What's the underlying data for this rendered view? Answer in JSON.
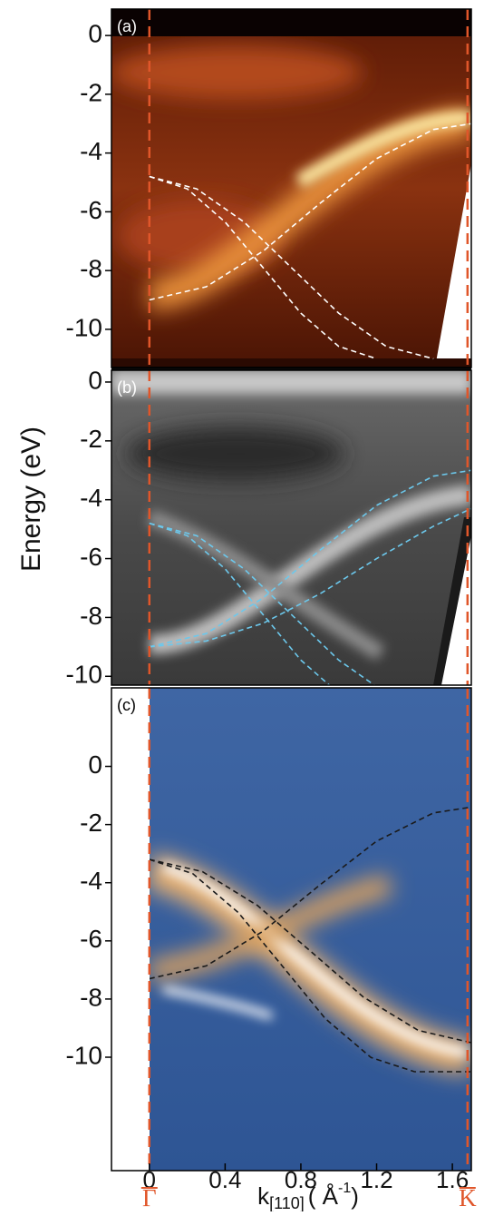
{
  "chart_data": [
    {
      "type": "line",
      "label": "(a)",
      "label_color": "#ffffff",
      "xlim": [
        -0.2,
        1.7
      ],
      "ylim": [
        -11.3,
        0.9
      ],
      "yticks": [
        -10,
        -8,
        -6,
        -4,
        -2,
        0
      ],
      "series": [
        {
          "color": "#ffffff",
          "x": [
            0,
            0.3,
            0.6,
            0.9,
            1.2,
            1.5,
            1.7
          ],
          "values": [
            -9,
            -8.55,
            -7.34,
            -5.72,
            -4.19,
            -3.2,
            -3.0
          ]
        },
        {
          "color": "#ffffff",
          "x": [
            0,
            0.2,
            0.4,
            0.6,
            0.8,
            1.0,
            1.2
          ],
          "values": [
            -4.8,
            -5.22,
            -6.35,
            -7.9,
            -9.45,
            -10.58,
            -11.0
          ]
        },
        {
          "color": "#ffffff",
          "x": [
            0,
            0.25,
            0.5,
            0.75,
            1.0,
            1.25,
            1.5
          ],
          "values": [
            -4.8,
            -5.22,
            -6.35,
            -7.9,
            -9.45,
            -10.58,
            -11.0
          ]
        }
      ]
    },
    {
      "type": "line",
      "label": "(b)",
      "label_color": "#ffffff",
      "ylabel": "Energy (eV)",
      "xlim": [
        -0.2,
        1.7
      ],
      "ylim": [
        -10.3,
        0.4
      ],
      "yticks": [
        -10,
        -8,
        -6,
        -4,
        -2,
        0
      ],
      "series": [
        {
          "color": "#6cc8ec",
          "x": [
            0,
            0.3,
            0.6,
            0.9,
            1.2,
            1.5,
            1.7
          ],
          "values": [
            -9,
            -8.55,
            -7.34,
            -5.72,
            -4.19,
            -3.2,
            -3.0
          ]
        },
        {
          "color": "#6cc8ec",
          "x": [
            0,
            0.3,
            0.6,
            0.9,
            1.2,
            1.5,
            1.7
          ],
          "values": [
            -9.0,
            -8.8,
            -8.2,
            -7.2,
            -6.0,
            -4.9,
            -4.3
          ]
        },
        {
          "color": "#6cc8ec",
          "x": [
            0,
            0.2,
            0.4,
            0.6,
            0.8,
            1.0,
            1.2
          ],
          "values": [
            -4.8,
            -5.22,
            -6.35,
            -7.9,
            -9.45,
            -10.58,
            -11.0
          ]
        },
        {
          "color": "#6cc8ec",
          "x": [
            0,
            0.25,
            0.5,
            0.75,
            1.0,
            1.25,
            1.5
          ],
          "values": [
            -4.8,
            -5.22,
            -6.35,
            -7.9,
            -9.45,
            -10.58,
            -11.0
          ]
        }
      ]
    },
    {
      "type": "line",
      "label": "(c)",
      "label_color": "#000000",
      "xlim": [
        -0.2,
        1.7
      ],
      "ylim": [
        -13.9,
        2.7
      ],
      "yticks": [
        -10,
        -8,
        -6,
        -4,
        -2,
        0
      ],
      "xticks": [
        0,
        0.4,
        0.8,
        1.2,
        1.6
      ],
      "xlabel": {
        "main": "k",
        "sub": "[110]",
        "unit": "( Å",
        "sup": "-1",
        "close": ")"
      },
      "marks": [
        {
          "value": 0,
          "label": "Γ"
        },
        {
          "value": 1.68,
          "label": "K"
        }
      ],
      "marks_color": "#e0562a",
      "series": [
        {
          "color": "#1a1a1a",
          "x": [
            0,
            0.3,
            0.6,
            0.9,
            1.2,
            1.5,
            1.7
          ],
          "values": [
            -7.3,
            -6.86,
            -5.67,
            -4.08,
            -2.57,
            -1.6,
            -1.4
          ]
        },
        {
          "color": "#1a1a1a",
          "x": [
            0,
            0.23,
            0.47,
            0.7,
            0.93,
            1.17,
            1.4,
            1.7
          ],
          "values": [
            -3.2,
            -3.69,
            -5.03,
            -6.85,
            -8.68,
            -10.01,
            -10.5,
            -10.5
          ]
        },
        {
          "color": "#1a1a1a",
          "x": [
            0,
            0.28,
            0.57,
            0.85,
            1.13,
            1.42,
            1.7
          ],
          "values": [
            -3.2,
            -3.62,
            -4.78,
            -6.35,
            -7.93,
            -9.08,
            -9.5
          ]
        }
      ]
    }
  ]
}
